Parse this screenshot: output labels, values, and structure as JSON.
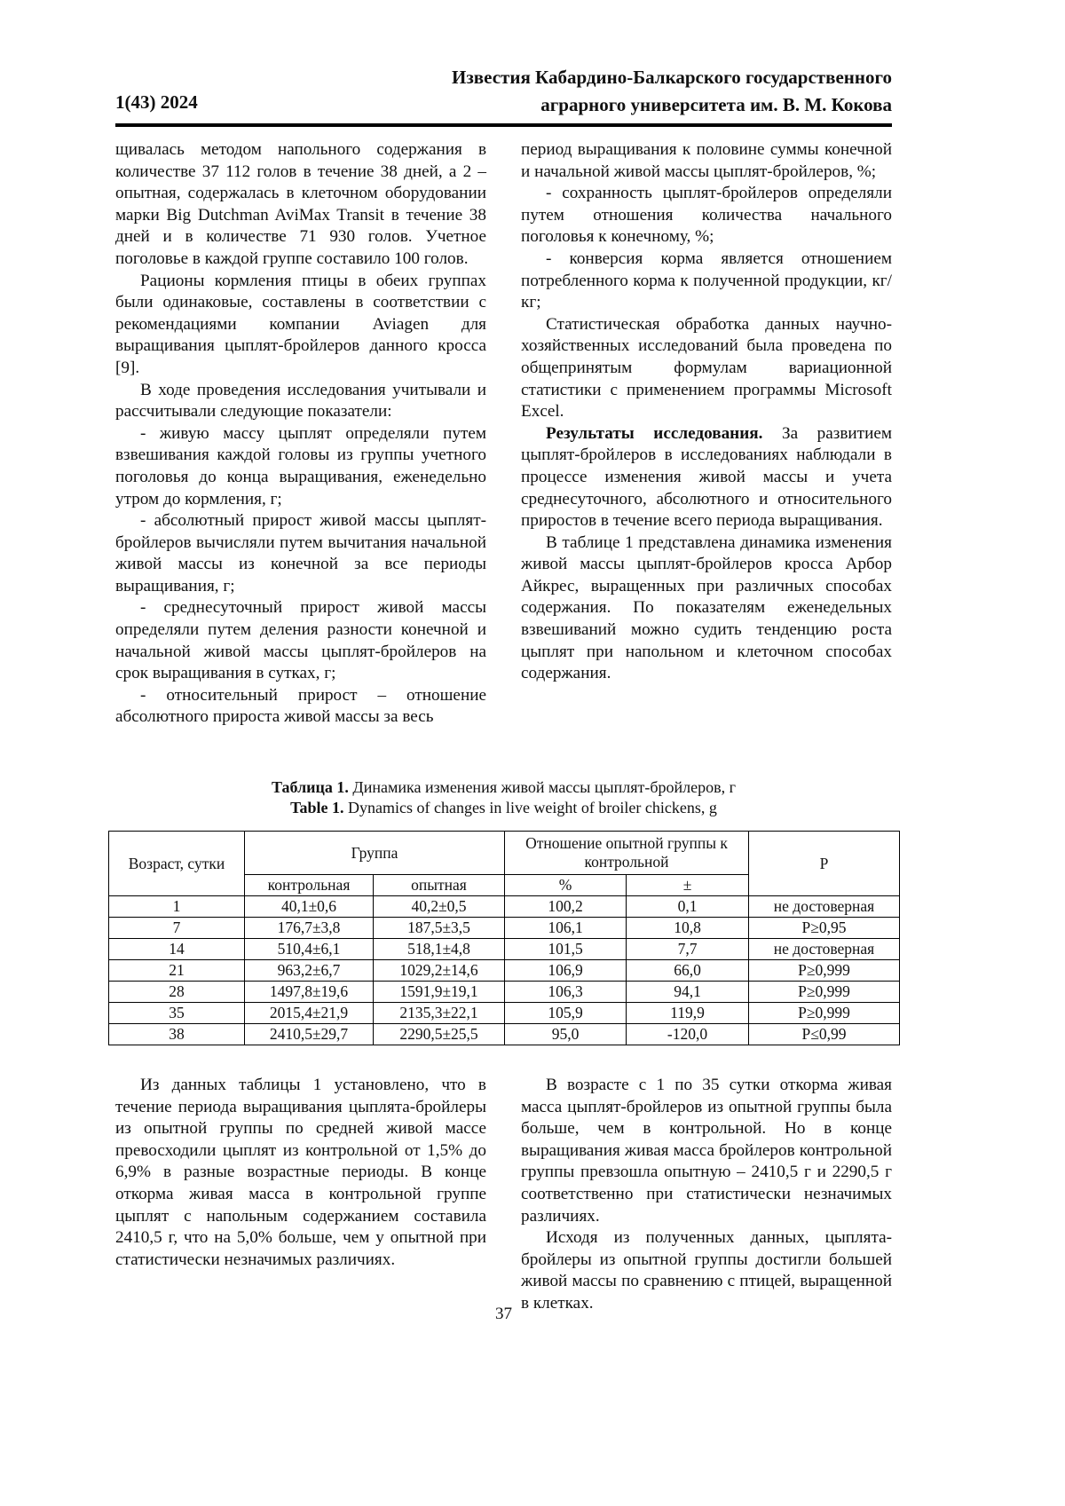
{
  "header": {
    "journal_line1": "Известия Кабардино-Балкарского государственного",
    "journal_line2": "аграрного университета им. В. М. Кокова",
    "issue": "1(43) 2024"
  },
  "top_left": [
    {
      "text": "щивалась методом напольного содержания в количестве 37 112 голов в течение 38 дней, а 2 – опытная, содержалась в клеточном оборудовании марки Big Dutchman AviMax Transit в течение 38 дней и в количестве 71 930 голов. Учетное поголовье в каждой группе составило 100 голов.",
      "indent": false
    },
    {
      "text": "Рационы кормления птицы в обеих группах были одинаковые, составлены в соответствии с рекомендациями компании Aviagen для выращивания цыплят-бройлеров данного кросса [9].",
      "indent": true
    },
    {
      "text": "В ходе проведения исследования учитывали и рассчитывали следующие показатели:",
      "indent": true
    },
    {
      "text": "- живую массу цыплят определяли путем взвешивания каждой головы из группы учетного поголовья до конца выращивания, еженедельно утром до кормления, г;",
      "indent": true
    },
    {
      "text": "- абсолютный прирост живой массы цыплят-бройлеров вычисляли путем вычитания начальной живой массы из конечной за все периоды выращивания, г;",
      "indent": true
    },
    {
      "text": "- среднесуточный прирост живой массы определяли путем деления разности конечной и начальной живой массы цыплят-бройлеров на срок выращивания в сутках, г;",
      "indent": true
    },
    {
      "text": "- относительный прирост – отношение абсолютного прироста живой массы за весь",
      "indent": true
    }
  ],
  "top_right": [
    {
      "text": "период выращивания к половине суммы конечной и начальной живой массы цыплят-бройлеров, %;",
      "indent": false
    },
    {
      "text": "- сохранность цыплят-бройлеров определяли путем отношения количества начального поголовья к конечному, %;",
      "indent": true
    },
    {
      "text": "- конверсия корма является отношением потребленного корма к полученной продукции, кг/кг;",
      "indent": true
    },
    {
      "text": "Статистическая обработка данных научно-хозяйственных исследований была проведена по общепринятым формулам вариационной статистики с применением программы Microsoft Excel.",
      "indent": true
    }
  ],
  "results": {
    "heading": "Результаты исследования.",
    "text": " За развитием цыплят-бройлеров в исследованиях наблюдали в процессе изменения живой массы и учета среднесуточного, абсолютного и относительного приростов в течение всего периода выращивания."
  },
  "results_p2": "В таблице 1 представлена динамика изменения живой массы цыплят-бройлеров кросса Арбор Айкрес, выращенных при различных способах содержания. По показателям еженедельных взвешиваний можно судить тенденцию роста цыплят при напольном и клеточном способах содержания.",
  "table": {
    "caption_ru_label": "Таблица 1.",
    "caption_ru": " Динамика изменения живой массы цыплят-бройлеров, г",
    "caption_en_label": "Table 1.",
    "caption_en": " Dynamics of changes in live weight of broiler chickens, g",
    "h_age": "Возраст, сутки",
    "h_group": "Группа",
    "h_ratio": "Отношение опытной группы к контрольной",
    "h_p": "P",
    "h_control": "контрольная",
    "h_exp": "опытная",
    "h_pct": "%",
    "h_pm": "±",
    "rows": [
      [
        "1",
        "40,1±0,6",
        "40,2±0,5",
        "100,2",
        "0,1",
        "не достоверная"
      ],
      [
        "7",
        "176,7±3,8",
        "187,5±3,5",
        "106,1",
        "10,8",
        "P≥0,95"
      ],
      [
        "14",
        "510,4±6,1",
        "518,1±4,8",
        "101,5",
        "7,7",
        "не достоверная"
      ],
      [
        "21",
        "963,2±6,7",
        "1029,2±14,6",
        "106,9",
        "66,0",
        "P≥0,999"
      ],
      [
        "28",
        "1497,8±19,6",
        "1591,9±19,1",
        "106,3",
        "94,1",
        "P≥0,999"
      ],
      [
        "35",
        "2015,4±21,9",
        "2135,3±22,1",
        "105,9",
        "119,9",
        "P≥0,999"
      ],
      [
        "38",
        "2410,5±29,7",
        "2290,5±25,5",
        "95,0",
        "-120,0",
        "P≤0,99"
      ]
    ]
  },
  "bottom_left": [
    "Из данных таблицы 1 установлено, что в течение периода выращивания цыплята-бройлеры из опытной группы по средней живой массе превосходили цыплят из контрольной от 1,5% до 6,9% в разные возрастные периоды. В конце откорма живая масса в контрольной группе цыплят с напольным содержанием составила 2410,5 г, что на 5,0% больше, чем у опытной при статистически незначимых различиях."
  ],
  "bottom_right": [
    "В возрасте с 1 по 35 сутки откорма живая масса цыплят-бройлеров из опытной группы была больше, чем в контрольной. Но в конце выращивания живая масса бройлеров контрольной группы превзошла опытную – 2410,5 г и 2290,5 г соответственно при статистически незначимых различиях.",
    "Исходя из полученных данных, цыплята-бройлеры из опытной группы достигли большей живой массы по сравнению с птицей, выращенной в клетках."
  ],
  "page_number": "37"
}
